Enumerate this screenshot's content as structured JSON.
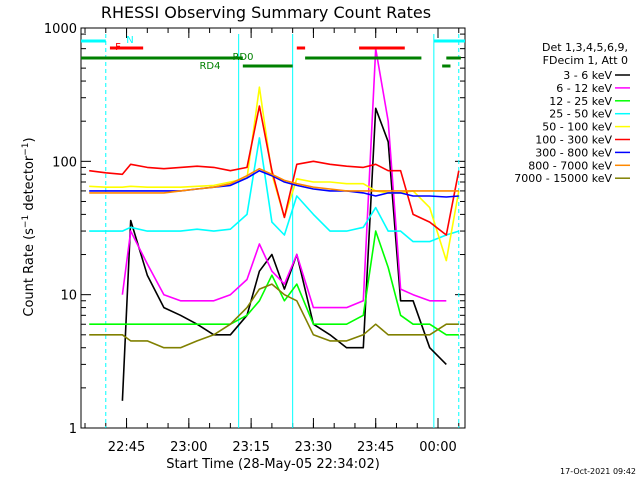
{
  "chart_data": {
    "type": "line",
    "title": "RHESSI Observing Summary Count Rates",
    "xlabel": "Start Time (28-May-05 22:34:02)",
    "ylabel": "Count Rate (s⁻¹ detector⁻¹)",
    "ylabel_main": "Count Rate (s",
    "ylabel_sup1": "−1",
    "ylabel_mid": " detector",
    "ylabel_sup2": "−1",
    "ylabel_end": ")",
    "yscale": "log",
    "ylim": [
      1,
      1000
    ],
    "y_ticks": [
      {
        "value": 1,
        "label": "1"
      },
      {
        "value": 10,
        "label": "10"
      },
      {
        "value": 100,
        "label": "100"
      },
      {
        "value": 1000,
        "label": "1000"
      }
    ],
    "xlim": [
      "22:34:02",
      "00:06:30"
    ],
    "x_ticks": [
      {
        "value": "22:45",
        "label": "22:45"
      },
      {
        "value": "23:00",
        "label": "23:00"
      },
      {
        "value": "23:15",
        "label": "23:15"
      },
      {
        "value": "23:30",
        "label": "23:30"
      },
      {
        "value": "23:45",
        "label": "23:45"
      },
      {
        "value": "00:00",
        "label": "00:00"
      }
    ],
    "legend_placement": "right",
    "legend_header": [
      "Det 1,3,4,5,6,9,",
      "FDecim 1, Att 0"
    ],
    "x": [
      "22:36",
      "22:40",
      "22:44",
      "22:46",
      "22:50",
      "22:54",
      "22:58",
      "23:02",
      "23:06",
      "23:10",
      "23:14",
      "23:17",
      "23:20",
      "23:23",
      "23:26",
      "23:30",
      "23:34",
      "23:38",
      "23:42",
      "23:45",
      "23:48",
      "23:51",
      "23:54",
      "23:58",
      "00:02",
      "00:05"
    ],
    "series": [
      {
        "name": "3 - 6 keV",
        "color": "#000000",
        "values": [
          null,
          null,
          1.6,
          36,
          14,
          8,
          7,
          6,
          5,
          5,
          7,
          15,
          20,
          11,
          20,
          6,
          5,
          4,
          4,
          250,
          140,
          9,
          9,
          4,
          3,
          null
        ]
      },
      {
        "name": "6 - 12 keV",
        "color": "#ff00ff",
        "values": [
          null,
          null,
          10,
          30,
          17,
          10,
          9,
          9,
          9,
          10,
          13,
          24,
          15,
          12,
          20,
          8,
          8,
          8,
          9,
          700,
          200,
          11,
          10,
          9,
          9,
          null
        ]
      },
      {
        "name": "12 - 25 keV",
        "color": "#00ff00",
        "values": [
          6,
          6,
          6,
          6,
          6,
          6,
          6,
          6,
          6,
          6,
          7,
          9,
          14,
          9,
          12,
          6,
          6,
          6,
          7,
          30,
          16,
          7,
          6,
          6,
          5,
          5
        ]
      },
      {
        "name": "25 - 50 keV",
        "color": "#00ffff",
        "values": [
          30,
          30,
          30,
          32,
          30,
          30,
          30,
          31,
          30,
          31,
          40,
          150,
          35,
          28,
          55,
          40,
          30,
          30,
          32,
          45,
          30,
          30,
          25,
          25,
          28,
          30
        ]
      },
      {
        "name": "50 - 100 keV",
        "color": "#ffff00",
        "values": [
          65,
          64,
          64,
          65,
          64,
          64,
          64,
          65,
          66,
          70,
          75,
          360,
          80,
          38,
          74,
          70,
          70,
          68,
          68,
          60,
          58,
          58,
          60,
          45,
          18,
          60
        ]
      },
      {
        "name": "100 - 300 keV",
        "color": "#ff0000",
        "values": [
          85,
          82,
          80,
          95,
          90,
          88,
          90,
          92,
          90,
          85,
          90,
          260,
          85,
          38,
          95,
          100,
          95,
          92,
          90,
          95,
          85,
          85,
          40,
          35,
          28,
          85
        ]
      },
      {
        "name": "300 - 800 keV",
        "color": "#0000ff",
        "values": [
          60,
          60,
          60,
          60,
          60,
          60,
          60,
          62,
          64,
          66,
          75,
          85,
          78,
          70,
          66,
          62,
          60,
          60,
          58,
          55,
          58,
          58,
          55,
          55,
          54,
          55
        ]
      },
      {
        "name": "800 - 7000 keV",
        "color": "#ff8800",
        "values": [
          58,
          58,
          58,
          58,
          58,
          58,
          60,
          62,
          64,
          68,
          78,
          88,
          80,
          72,
          68,
          64,
          62,
          60,
          60,
          60,
          60,
          60,
          60,
          60,
          60,
          60
        ]
      },
      {
        "name": "7000 - 15000 keV",
        "color": "#808000",
        "values": [
          5,
          5,
          5,
          4.5,
          4.5,
          4,
          4,
          4.5,
          5,
          6,
          8,
          11,
          12,
          10,
          9,
          5,
          4.5,
          4.5,
          5,
          6,
          5,
          5,
          5,
          5,
          6,
          6
        ]
      }
    ],
    "flag_labels": [
      {
        "text": "N",
        "color": "#00ffff"
      },
      {
        "text": "F",
        "color": "#ff0000"
      },
      {
        "text": "RD0",
        "color": "#008000"
      },
      {
        "text": "RD4",
        "color": "#008000"
      }
    ],
    "flag_bars": [
      {
        "color": "#00ffff",
        "segments": [
          [
            "22:34:02",
            "22:40"
          ],
          [
            "23:59",
            "00:06:30"
          ]
        ]
      },
      {
        "color": "#ff0000",
        "segments": [
          [
            "22:41",
            "22:49"
          ],
          [
            "23:26",
            "23:28"
          ],
          [
            "23:41",
            "23:52"
          ]
        ]
      },
      {
        "color": "#008000",
        "segments": [
          [
            "22:34:02",
            "23:13"
          ],
          [
            "23:28",
            "23:56"
          ],
          [
            "00:02",
            "00:05:30"
          ]
        ]
      },
      {
        "color": "#008000",
        "segments": [
          [
            "23:13",
            "23:25"
          ],
          [
            "00:01",
            "00:03"
          ]
        ]
      }
    ],
    "vlines": [
      {
        "time": "22:40",
        "color": "#00ffff",
        "style": "dashed"
      },
      {
        "time": "23:12",
        "color": "#00ffff",
        "style": "solid"
      },
      {
        "time": "23:25",
        "color": "#00ffff",
        "style": "solid"
      },
      {
        "time": "23:59",
        "color": "#00ffff",
        "style": "solid"
      },
      {
        "time": "00:05",
        "color": "#00ffff",
        "style": "dashed"
      }
    ],
    "footer": "17-Oct-2021 09:42"
  }
}
